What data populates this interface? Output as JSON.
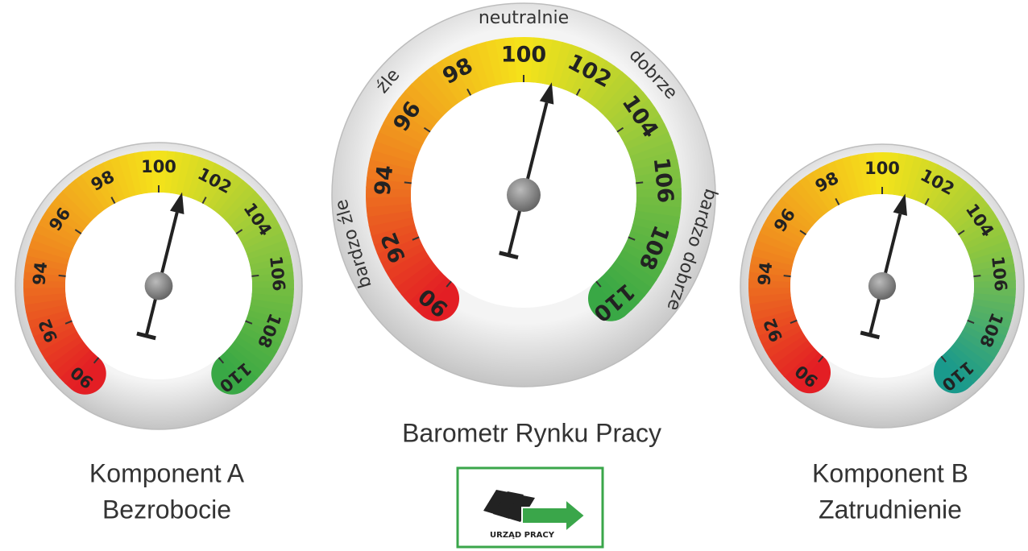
{
  "chart_data": [
    {
      "type": "gauge",
      "title": "Komponent A",
      "subtitle": "Bezrobocie",
      "value": 101,
      "xlim": [
        90,
        110
      ],
      "xticks": [
        90,
        92,
        94,
        96,
        98,
        100,
        102,
        104,
        106,
        108,
        110
      ],
      "colors": [
        "#e31e24",
        "#f08c1e",
        "#f5e31a",
        "#8dc63f",
        "#39a845"
      ]
    },
    {
      "type": "gauge",
      "title": "Barometr Rynku Pracy",
      "value": 101,
      "xlim": [
        90,
        110
      ],
      "xticks": [
        90,
        92,
        94,
        96,
        98,
        100,
        102,
        104,
        106,
        108,
        110
      ],
      "zone_labels": [
        "bardzo źle",
        "źle",
        "neutralnie",
        "dobrze",
        "bardzo dobrze"
      ],
      "colors": [
        "#e31e24",
        "#f08c1e",
        "#f5e31a",
        "#8dc63f",
        "#39a845"
      ]
    },
    {
      "type": "gauge",
      "title": "Komponent B",
      "subtitle": "Zatrudnienie",
      "value": 101,
      "xlim": [
        90,
        110
      ],
      "xticks": [
        90,
        92,
        94,
        96,
        98,
        100,
        102,
        104,
        106,
        108,
        110
      ],
      "colors": [
        "#e31e24",
        "#f08c1e",
        "#f5e31a",
        "#8dc63f",
        "#1a9a8c"
      ]
    }
  ],
  "logo": {
    "text": "URZĄD PRACY"
  }
}
